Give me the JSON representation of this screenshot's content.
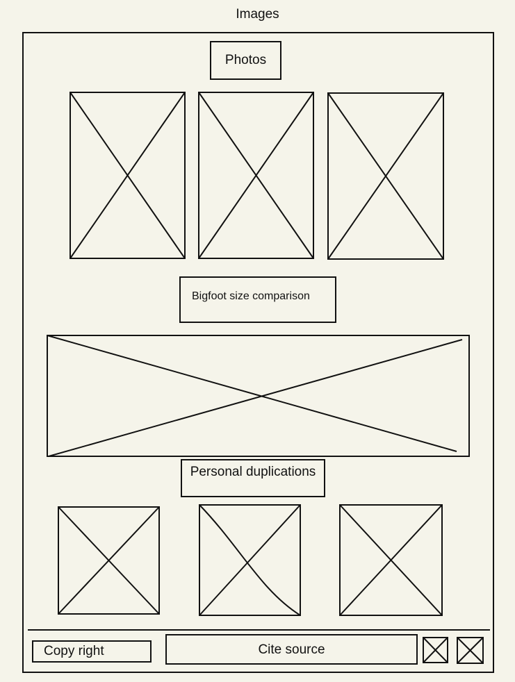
{
  "page": {
    "title": "Images"
  },
  "sections": {
    "photos_label": "Photos",
    "comparison_label": "Bigfoot size comparison",
    "duplications_label": "Personal duplications"
  },
  "footer": {
    "copyright_label": "Copy right",
    "cite_label": "Cite source"
  },
  "icons": {
    "placeholder": "image-placeholder-icon"
  }
}
